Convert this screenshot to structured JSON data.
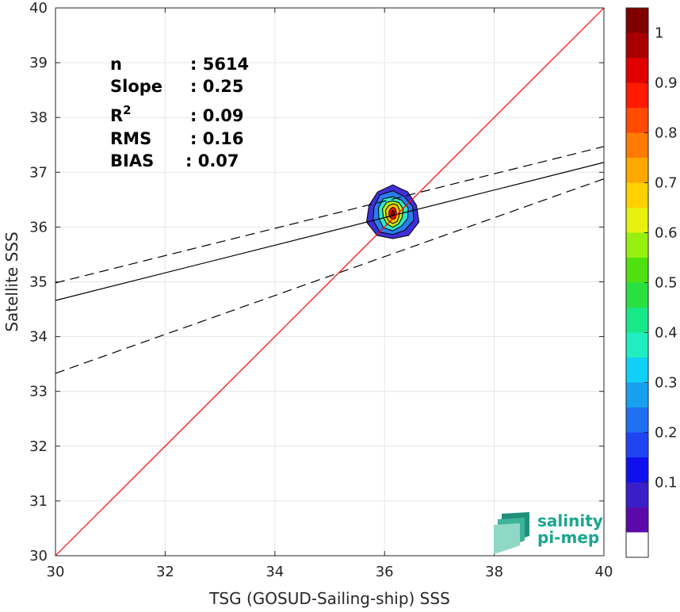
{
  "chart_data": {
    "type": "scatter",
    "subtype": "2D density contour with regression",
    "xlabel": "TSG (GOSUD-Sailing-ship) SSS",
    "ylabel": "Satellite SSS",
    "xlim": [
      30,
      40
    ],
    "ylim": [
      30,
      40
    ],
    "xticks": [
      30,
      32,
      34,
      36,
      38,
      40
    ],
    "yticks": [
      30,
      31,
      32,
      33,
      34,
      35,
      36,
      37,
      38,
      39,
      40
    ],
    "grid": true,
    "stats": [
      {
        "name": "n",
        "value": ": 5614",
        "sup": ""
      },
      {
        "name": "Slope",
        "value": ": 0.25",
        "sup": ""
      },
      {
        "name": "R",
        "value": ": 0.09",
        "sup": "2"
      },
      {
        "name": "RMS",
        "value": ": 0.16",
        "sup": ""
      },
      {
        "name": "BIAS",
        "value": ": 0.07",
        "sup": ""
      }
    ],
    "identity_line": {
      "color": "#ff0000",
      "x": [
        30,
        40
      ],
      "y": [
        30,
        40
      ]
    },
    "regression_line": {
      "color": "#000000",
      "x": [
        30,
        40
      ],
      "y": [
        34.66,
        37.18
      ]
    },
    "regression_upper": {
      "color": "#000000",
      "style": "dashed",
      "x": [
        30,
        40
      ],
      "y": [
        34.98,
        37.47
      ]
    },
    "regression_lower": {
      "color": "#000000",
      "style": "dashed",
      "x": [
        30,
        40
      ],
      "y": [
        33.33,
        36.88
      ]
    },
    "density_center": {
      "x": 36.15,
      "y": 36.25
    },
    "contour_levels": [
      {
        "level": 0.1,
        "color": "#3f2fd6",
        "rx": 0.48,
        "ry": 0.49
      },
      {
        "level": 0.2,
        "color": "#2a7df0",
        "rx": 0.38,
        "ry": 0.4
      },
      {
        "level": 0.4,
        "color": "#2fe7c8",
        "rx": 0.28,
        "ry": 0.31
      },
      {
        "level": 0.6,
        "color": "#b8f01d",
        "rx": 0.19,
        "ry": 0.24
      },
      {
        "level": 0.7,
        "color": "#ffc000",
        "rx": 0.13,
        "ry": 0.18
      },
      {
        "level": 0.9,
        "color": "#f01010",
        "rx": 0.07,
        "ry": 0.11
      },
      {
        "level": 1.0,
        "color": "#8b0000",
        "rx": 0.03,
        "ry": 0.05
      }
    ],
    "colorbar": {
      "ticks": [
        "0.1",
        "0.2",
        "0.3",
        "0.4",
        "0.5",
        "0.6",
        "0.7",
        "0.8",
        "0.9",
        "1"
      ],
      "colors": [
        "#ffffff",
        "#5a0aa8",
        "#3a1fc8",
        "#1010ee",
        "#1f44f2",
        "#1f70f0",
        "#18a0f0",
        "#10d0f8",
        "#20eec0",
        "#18e888",
        "#28e040",
        "#50e010",
        "#98f010",
        "#e8f010",
        "#ffd000",
        "#ffa800",
        "#ff7a00",
        "#ff4a00",
        "#ff1a00",
        "#e00000",
        "#a80000",
        "#800000"
      ]
    },
    "logo": {
      "line1": "salinity",
      "line2": "pi-mep"
    }
  }
}
